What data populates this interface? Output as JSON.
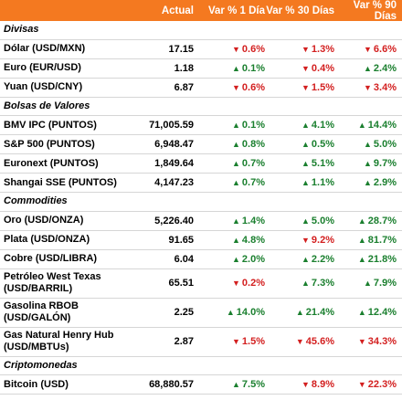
{
  "header": {
    "col_actual": "Actual",
    "col_1d": "Var % 1 Día",
    "col_30d": "Var % 30 Días",
    "col_90d": "Var % 90 Días"
  },
  "colors": {
    "header_bg": "#f47920",
    "up": "#1a7f2e",
    "down": "#d31f1f"
  },
  "sections": [
    {
      "title": "Divisas",
      "rows": [
        {
          "name": "Dólar (USD/MXN)",
          "actual": "17.15",
          "d1": "0.6%",
          "d1_dir": "down",
          "d30": "1.3%",
          "d30_dir": "down",
          "d90": "6.6%",
          "d90_dir": "down"
        },
        {
          "name": "Euro (EUR/USD)",
          "actual": "1.18",
          "d1": "0.1%",
          "d1_dir": "up",
          "d30": "0.4%",
          "d30_dir": "down",
          "d90": "2.4%",
          "d90_dir": "up"
        },
        {
          "name": "Yuan (USD/CNY)",
          "actual": "6.87",
          "d1": "0.6%",
          "d1_dir": "down",
          "d30": "1.5%",
          "d30_dir": "down",
          "d90": "3.4%",
          "d90_dir": "down"
        }
      ]
    },
    {
      "title": "Bolsas de Valores",
      "rows": [
        {
          "name": "BMV IPC (PUNTOS)",
          "actual": "71,005.59",
          "d1": "0.1%",
          "d1_dir": "up",
          "d30": "4.1%",
          "d30_dir": "up",
          "d90": "14.4%",
          "d90_dir": "up"
        },
        {
          "name": "S&P 500 (PUNTOS)",
          "actual": "6,948.47",
          "d1": "0.8%",
          "d1_dir": "up",
          "d30": "0.5%",
          "d30_dir": "up",
          "d90": "5.0%",
          "d90_dir": "up"
        },
        {
          "name": "Euronext (PUNTOS)",
          "actual": "1,849.64",
          "d1": "0.7%",
          "d1_dir": "up",
          "d30": "5.1%",
          "d30_dir": "up",
          "d90": "9.7%",
          "d90_dir": "up"
        },
        {
          "name": "Shangai SSE (PUNTOS)",
          "actual": "4,147.23",
          "d1": "0.7%",
          "d1_dir": "up",
          "d30": "1.1%",
          "d30_dir": "up",
          "d90": "2.9%",
          "d90_dir": "up"
        }
      ]
    },
    {
      "title": "Commodities",
      "rows": [
        {
          "name": "Oro (USD/ONZA)",
          "actual": "5,226.40",
          "d1": "1.4%",
          "d1_dir": "up",
          "d30": "5.0%",
          "d30_dir": "up",
          "d90": "28.7%",
          "d90_dir": "up"
        },
        {
          "name": "Plata (USD/ONZA)",
          "actual": "91.65",
          "d1": "4.8%",
          "d1_dir": "up",
          "d30": "9.2%",
          "d30_dir": "down",
          "d90": "81.7%",
          "d90_dir": "up"
        },
        {
          "name": "Cobre (USD/LIBRA)",
          "actual": "6.04",
          "d1": "2.0%",
          "d1_dir": "up",
          "d30": "2.2%",
          "d30_dir": "up",
          "d90": "21.8%",
          "d90_dir": "up"
        },
        {
          "name": "Petróleo West Texas (USD/BARRIL)",
          "actual": "65.51",
          "d1": "0.2%",
          "d1_dir": "down",
          "d30": "7.3%",
          "d30_dir": "up",
          "d90": "7.9%",
          "d90_dir": "up",
          "tall": true
        },
        {
          "name": "Gasolina RBOB (USD/GALÓN)",
          "actual": "2.25",
          "d1": "14.0%",
          "d1_dir": "up",
          "d30": "21.4%",
          "d30_dir": "up",
          "d90": "12.4%",
          "d90_dir": "up",
          "tall": true
        },
        {
          "name": "Gas Natural Henry Hub (USD/MBTUs)",
          "actual": "2.87",
          "d1": "1.5%",
          "d1_dir": "down",
          "d30": "45.6%",
          "d30_dir": "down",
          "d90": "34.3%",
          "d90_dir": "down",
          "tall": true
        }
      ]
    },
    {
      "title": "Criptomonedas",
      "rows": [
        {
          "name": "Bitcoin (USD)",
          "actual": "68,880.57",
          "d1": "7.5%",
          "d1_dir": "up",
          "d30": "8.9%",
          "d30_dir": "down",
          "d90": "22.3%",
          "d90_dir": "down"
        }
      ]
    }
  ]
}
